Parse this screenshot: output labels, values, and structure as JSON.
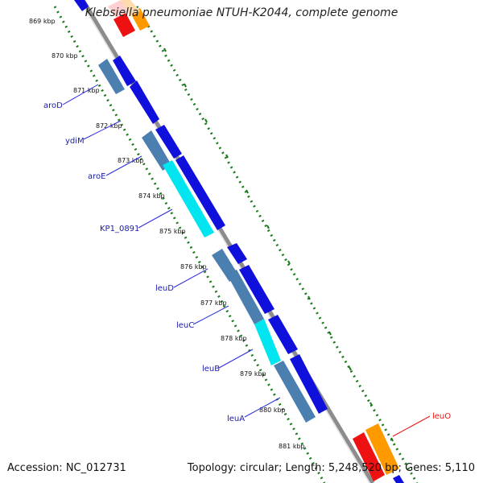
{
  "title": "Klebsiella pneumoniae NTUH-K2044, complete genome",
  "footer": {
    "accession": "Accession: NC_012731",
    "summary": "Topology: circular; Length: 5,248,520 bp; Genes: 5,110"
  },
  "scale_labels": [
    "869 kbp",
    "870 kbp",
    "871 kbp",
    "872 kbp",
    "873 kbp",
    "874 kbp",
    "875 kbp",
    "876 kbp",
    "877 kbp",
    "878 kbp",
    "879 kbp",
    "880 kbp",
    "881 kbp"
  ],
  "gene_labels": [
    "aroD",
    "ydiM",
    "aroE",
    "KP1_0891",
    "leuD",
    "leuC",
    "leuB",
    "leuA",
    "leuO"
  ],
  "colors": {
    "backbone": "#8c8c8c",
    "ruler": "#1a7a1a",
    "cds_forward": "#1010dd",
    "cds_reverse": "#4a7fb0",
    "cds_highlight": "#00e5f0",
    "label": "#1a1aaa",
    "label_line": "#2a2add",
    "red": "#ee1111",
    "orange": "#ff9900"
  }
}
